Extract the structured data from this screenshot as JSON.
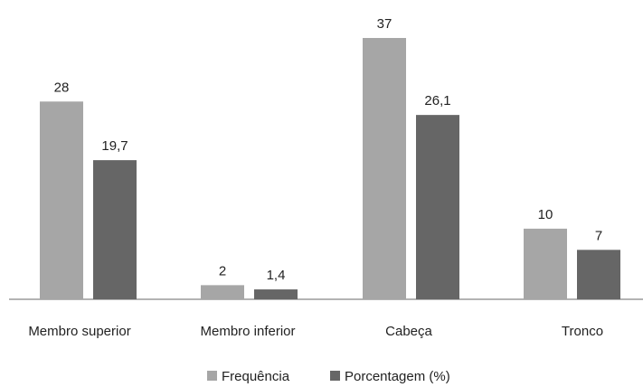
{
  "chart_data": {
    "type": "bar",
    "categories": [
      "Membro superior",
      "Membro inferior",
      "Cabeça",
      "Tronco"
    ],
    "series": [
      {
        "name": "Frequência",
        "values": [
          28,
          2,
          37,
          10
        ],
        "labels": [
          "28",
          "2",
          "37",
          "10"
        ],
        "color": "#a6a6a6"
      },
      {
        "name": "Porcentagem (%)",
        "values": [
          19.7,
          1.4,
          26.1,
          7
        ],
        "labels": [
          "19,7",
          "1,4",
          "26,1",
          "7"
        ],
        "color": "#666666"
      }
    ],
    "title": "",
    "xlabel": "",
    "ylabel": "",
    "ylim": [
      0,
      37
    ],
    "grid": false,
    "legend_position": "bottom",
    "axis_line_color": "#9a9a9a"
  }
}
